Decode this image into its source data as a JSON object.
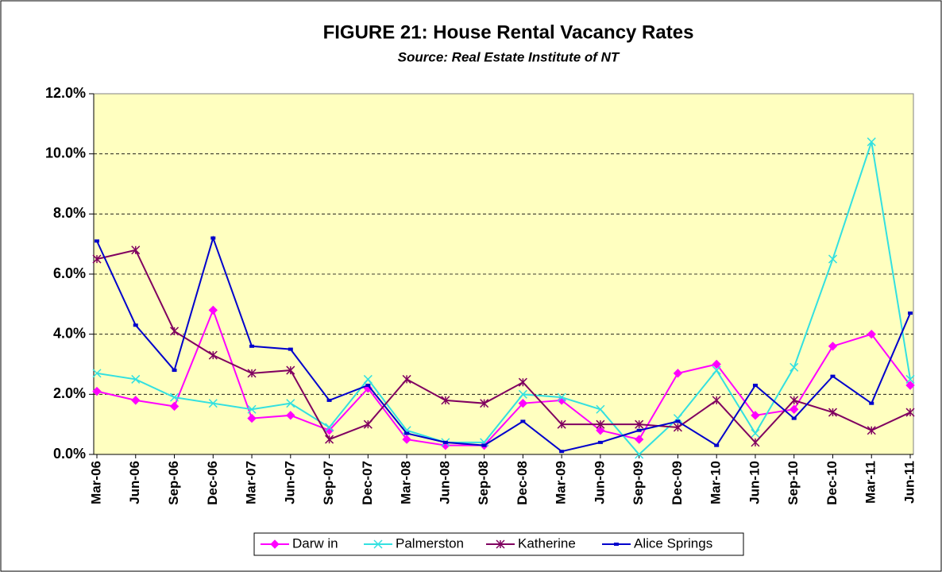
{
  "chart_data": {
    "type": "line",
    "title": "FIGURE 21: House Rental Vacancy Rates",
    "subtitle": "Source: Real Estate Institute of NT",
    "categories": [
      "Mar-06",
      "Jun-06",
      "Sep-06",
      "Dec-06",
      "Mar-07",
      "Jun-07",
      "Sep-07",
      "Dec-07",
      "Mar-08",
      "Jun-08",
      "Sep-08",
      "Dec-08",
      "Mar-09",
      "Jun-09",
      "Sep-09",
      "Dec-09",
      "Mar-10",
      "Jun-10",
      "Sep-10",
      "Dec-10",
      "Mar-11",
      "Jun-11"
    ],
    "series": [
      {
        "name": "Darw in",
        "color": "#ff00ff",
        "marker": "diamond",
        "values": [
          2.1,
          1.8,
          1.6,
          4.8,
          1.2,
          1.3,
          0.8,
          2.2,
          0.5,
          0.3,
          0.3,
          1.7,
          1.8,
          0.8,
          0.5,
          2.7,
          3.0,
          1.3,
          1.5,
          3.6,
          4.0,
          2.3
        ]
      },
      {
        "name": "Palmerston",
        "color": "#33e0e0",
        "marker": "x",
        "values": [
          2.7,
          2.5,
          1.9,
          1.7,
          1.5,
          1.7,
          0.9,
          2.5,
          0.8,
          0.4,
          0.4,
          2.0,
          1.9,
          1.5,
          0.0,
          1.2,
          2.8,
          0.7,
          2.9,
          6.5,
          10.4,
          2.5
        ]
      },
      {
        "name": "Katherine",
        "color": "#800060",
        "marker": "star",
        "values": [
          6.5,
          6.8,
          4.1,
          3.3,
          2.7,
          2.8,
          0.5,
          1.0,
          2.5,
          1.8,
          1.7,
          2.4,
          1.0,
          1.0,
          1.0,
          0.9,
          1.8,
          0.4,
          1.8,
          1.4,
          0.8,
          1.4
        ]
      },
      {
        "name": "Alice Springs",
        "color": "#0000cc",
        "marker": "dash",
        "values": [
          7.1,
          4.3,
          2.8,
          7.2,
          3.6,
          3.5,
          1.8,
          2.3,
          0.7,
          0.4,
          0.3,
          1.1,
          0.1,
          0.4,
          0.8,
          1.1,
          0.3,
          2.3,
          1.2,
          2.6,
          1.7,
          4.7
        ]
      }
    ],
    "ylim": [
      0,
      12
    ],
    "yticks": [
      {
        "value": 0,
        "label": "0.0%"
      },
      {
        "value": 2,
        "label": "2.0%"
      },
      {
        "value": 4,
        "label": "4.0%"
      },
      {
        "value": 6,
        "label": "6.0%"
      },
      {
        "value": 8,
        "label": "8.0%"
      },
      {
        "value": 10,
        "label": "10.0%"
      },
      {
        "value": 12,
        "label": "12.0%"
      }
    ],
    "grid": true,
    "legend": "bottom"
  }
}
